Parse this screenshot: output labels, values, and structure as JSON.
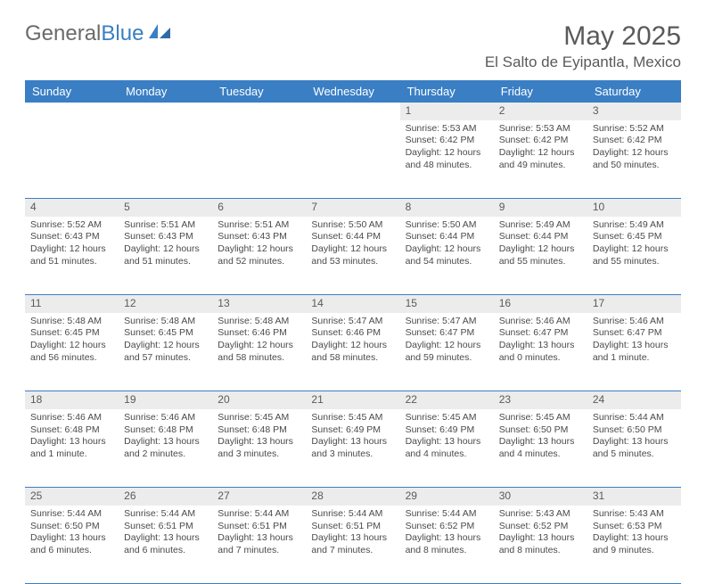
{
  "brand": {
    "text1": "General",
    "text2": "Blue"
  },
  "title": "May 2025",
  "location": "El Salto de Eyipantla, Mexico",
  "colors": {
    "header_bg": "#3a7fc4",
    "header_text": "#ffffff",
    "daynum_bg": "#ececec",
    "text": "#4a4a4a",
    "row_border": "#3a7fc4",
    "page_bg": "#ffffff"
  },
  "typography": {
    "title_fontsize": 30,
    "location_fontsize": 17,
    "dayheader_fontsize": 13,
    "cell_fontsize": 10.5
  },
  "day_headers": [
    "Sunday",
    "Monday",
    "Tuesday",
    "Wednesday",
    "Thursday",
    "Friday",
    "Saturday"
  ],
  "weeks": [
    [
      null,
      null,
      null,
      null,
      {
        "n": "1",
        "sunrise": "5:53 AM",
        "sunset": "6:42 PM",
        "daylight": "12 hours and 48 minutes."
      },
      {
        "n": "2",
        "sunrise": "5:53 AM",
        "sunset": "6:42 PM",
        "daylight": "12 hours and 49 minutes."
      },
      {
        "n": "3",
        "sunrise": "5:52 AM",
        "sunset": "6:42 PM",
        "daylight": "12 hours and 50 minutes."
      }
    ],
    [
      {
        "n": "4",
        "sunrise": "5:52 AM",
        "sunset": "6:43 PM",
        "daylight": "12 hours and 51 minutes."
      },
      {
        "n": "5",
        "sunrise": "5:51 AM",
        "sunset": "6:43 PM",
        "daylight": "12 hours and 51 minutes."
      },
      {
        "n": "6",
        "sunrise": "5:51 AM",
        "sunset": "6:43 PM",
        "daylight": "12 hours and 52 minutes."
      },
      {
        "n": "7",
        "sunrise": "5:50 AM",
        "sunset": "6:44 PM",
        "daylight": "12 hours and 53 minutes."
      },
      {
        "n": "8",
        "sunrise": "5:50 AM",
        "sunset": "6:44 PM",
        "daylight": "12 hours and 54 minutes."
      },
      {
        "n": "9",
        "sunrise": "5:49 AM",
        "sunset": "6:44 PM",
        "daylight": "12 hours and 55 minutes."
      },
      {
        "n": "10",
        "sunrise": "5:49 AM",
        "sunset": "6:45 PM",
        "daylight": "12 hours and 55 minutes."
      }
    ],
    [
      {
        "n": "11",
        "sunrise": "5:48 AM",
        "sunset": "6:45 PM",
        "daylight": "12 hours and 56 minutes."
      },
      {
        "n": "12",
        "sunrise": "5:48 AM",
        "sunset": "6:45 PM",
        "daylight": "12 hours and 57 minutes."
      },
      {
        "n": "13",
        "sunrise": "5:48 AM",
        "sunset": "6:46 PM",
        "daylight": "12 hours and 58 minutes."
      },
      {
        "n": "14",
        "sunrise": "5:47 AM",
        "sunset": "6:46 PM",
        "daylight": "12 hours and 58 minutes."
      },
      {
        "n": "15",
        "sunrise": "5:47 AM",
        "sunset": "6:47 PM",
        "daylight": "12 hours and 59 minutes."
      },
      {
        "n": "16",
        "sunrise": "5:46 AM",
        "sunset": "6:47 PM",
        "daylight": "13 hours and 0 minutes."
      },
      {
        "n": "17",
        "sunrise": "5:46 AM",
        "sunset": "6:47 PM",
        "daylight": "13 hours and 1 minute."
      }
    ],
    [
      {
        "n": "18",
        "sunrise": "5:46 AM",
        "sunset": "6:48 PM",
        "daylight": "13 hours and 1 minute."
      },
      {
        "n": "19",
        "sunrise": "5:46 AM",
        "sunset": "6:48 PM",
        "daylight": "13 hours and 2 minutes."
      },
      {
        "n": "20",
        "sunrise": "5:45 AM",
        "sunset": "6:48 PM",
        "daylight": "13 hours and 3 minutes."
      },
      {
        "n": "21",
        "sunrise": "5:45 AM",
        "sunset": "6:49 PM",
        "daylight": "13 hours and 3 minutes."
      },
      {
        "n": "22",
        "sunrise": "5:45 AM",
        "sunset": "6:49 PM",
        "daylight": "13 hours and 4 minutes."
      },
      {
        "n": "23",
        "sunrise": "5:45 AM",
        "sunset": "6:50 PM",
        "daylight": "13 hours and 4 minutes."
      },
      {
        "n": "24",
        "sunrise": "5:44 AM",
        "sunset": "6:50 PM",
        "daylight": "13 hours and 5 minutes."
      }
    ],
    [
      {
        "n": "25",
        "sunrise": "5:44 AM",
        "sunset": "6:50 PM",
        "daylight": "13 hours and 6 minutes."
      },
      {
        "n": "26",
        "sunrise": "5:44 AM",
        "sunset": "6:51 PM",
        "daylight": "13 hours and 6 minutes."
      },
      {
        "n": "27",
        "sunrise": "5:44 AM",
        "sunset": "6:51 PM",
        "daylight": "13 hours and 7 minutes."
      },
      {
        "n": "28",
        "sunrise": "5:44 AM",
        "sunset": "6:51 PM",
        "daylight": "13 hours and 7 minutes."
      },
      {
        "n": "29",
        "sunrise": "5:44 AM",
        "sunset": "6:52 PM",
        "daylight": "13 hours and 8 minutes."
      },
      {
        "n": "30",
        "sunrise": "5:43 AM",
        "sunset": "6:52 PM",
        "daylight": "13 hours and 8 minutes."
      },
      {
        "n": "31",
        "sunrise": "5:43 AM",
        "sunset": "6:53 PM",
        "daylight": "13 hours and 9 minutes."
      }
    ]
  ],
  "labels": {
    "sunrise": "Sunrise: ",
    "sunset": "Sunset: ",
    "daylight": "Daylight: "
  }
}
